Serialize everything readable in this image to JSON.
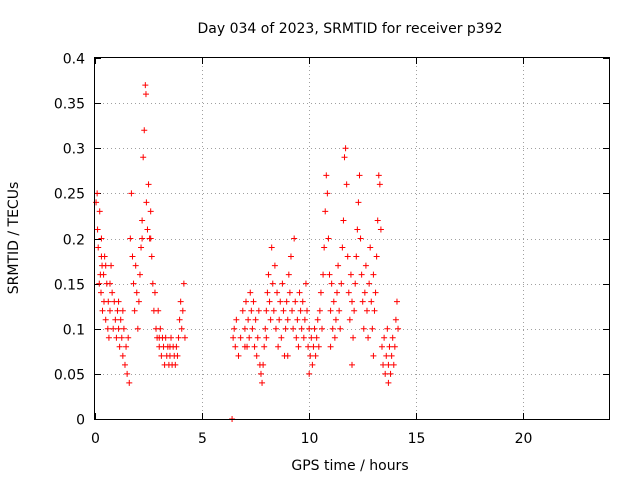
{
  "chart_data": {
    "type": "scatter",
    "title": "Day 034 of 2023, SRMTID for receiver p392",
    "xlabel": "GPS time / hours",
    "ylabel": "SRMTID / TECUs",
    "xlim": [
      0,
      24
    ],
    "ylim": [
      0,
      0.4
    ],
    "xticks": [
      0,
      5,
      10,
      15,
      20
    ],
    "xtick_labels": [
      "0",
      "5",
      "10",
      "15",
      "20"
    ],
    "yticks": [
      0,
      0.05,
      0.1,
      0.15,
      0.2,
      0.25,
      0.3,
      0.35,
      0.4
    ],
    "ytick_labels": [
      "0",
      "0.05",
      "0.1",
      "0.15",
      "0.2",
      "0.25",
      "0.3",
      "0.35",
      "0.4"
    ],
    "grid": true,
    "marker": "plus",
    "series_color": "#ff0000",
    "series": [
      {
        "name": "SRMTID",
        "points": [
          [
            0.05,
            0.24
          ],
          [
            0.1,
            0.25
          ],
          [
            0.12,
            0.21
          ],
          [
            0.15,
            0.19
          ],
          [
            0.2,
            0.15
          ],
          [
            0.22,
            0.23
          ],
          [
            0.25,
            0.16
          ],
          [
            0.28,
            0.14
          ],
          [
            0.3,
            0.2
          ],
          [
            0.33,
            0.17
          ],
          [
            0.35,
            0.12
          ],
          [
            0.4,
            0.16
          ],
          [
            0.42,
            0.13
          ],
          [
            0.45,
            0.18
          ],
          [
            0.5,
            0.11
          ],
          [
            0.55,
            0.15
          ],
          [
            0.6,
            0.1
          ],
          [
            0.62,
            0.13
          ],
          [
            0.65,
            0.09
          ],
          [
            0.7,
            0.12
          ],
          [
            0.75,
            0.17
          ],
          [
            0.8,
            0.14
          ],
          [
            0.85,
            0.1
          ],
          [
            0.9,
            0.13
          ],
          [
            0.95,
            0.11
          ],
          [
            1.0,
            0.09
          ],
          [
            1.05,
            0.12
          ],
          [
            1.1,
            0.1
          ],
          [
            1.15,
            0.08
          ],
          [
            1.2,
            0.11
          ],
          [
            1.25,
            0.09
          ],
          [
            1.3,
            0.07
          ],
          [
            1.35,
            0.1
          ],
          [
            1.4,
            0.06
          ],
          [
            1.45,
            0.08
          ],
          [
            1.5,
            0.05
          ],
          [
            1.55,
            0.09
          ],
          [
            1.6,
            0.04
          ],
          [
            1.65,
            0.2
          ],
          [
            1.7,
            0.25
          ],
          [
            1.75,
            0.18
          ],
          [
            1.8,
            0.15
          ],
          [
            1.85,
            0.12
          ],
          [
            1.9,
            0.17
          ],
          [
            1.95,
            0.14
          ],
          [
            2.0,
            0.1
          ],
          [
            2.05,
            0.13
          ],
          [
            2.1,
            0.16
          ],
          [
            2.15,
            0.19
          ],
          [
            2.2,
            0.22
          ],
          [
            2.25,
            0.29
          ],
          [
            2.3,
            0.32
          ],
          [
            2.35,
            0.37
          ],
          [
            2.38,
            0.36
          ],
          [
            2.4,
            0.24
          ],
          [
            2.45,
            0.21
          ],
          [
            2.5,
            0.26
          ],
          [
            2.55,
            0.2
          ],
          [
            2.6,
            0.23
          ],
          [
            2.65,
            0.18
          ],
          [
            2.7,
            0.15
          ],
          [
            2.75,
            0.12
          ],
          [
            2.8,
            0.14
          ],
          [
            2.85,
            0.1
          ],
          [
            2.9,
            0.09
          ],
          [
            2.95,
            0.12
          ],
          [
            3.0,
            0.08
          ],
          [
            3.05,
            0.1
          ],
          [
            3.1,
            0.07
          ],
          [
            3.15,
            0.09
          ],
          [
            3.2,
            0.08
          ],
          [
            3.25,
            0.06
          ],
          [
            3.3,
            0.09
          ],
          [
            3.35,
            0.07
          ],
          [
            3.4,
            0.08
          ],
          [
            3.45,
            0.06
          ],
          [
            3.5,
            0.07
          ],
          [
            3.55,
            0.09
          ],
          [
            3.6,
            0.06
          ],
          [
            3.65,
            0.08
          ],
          [
            3.7,
            0.07
          ],
          [
            3.75,
            0.06
          ],
          [
            3.8,
            0.08
          ],
          [
            3.85,
            0.07
          ],
          [
            3.9,
            0.09
          ],
          [
            3.95,
            0.11
          ],
          [
            4.0,
            0.13
          ],
          [
            4.05,
            0.1
          ],
          [
            4.1,
            0.12
          ],
          [
            4.15,
            0.15
          ],
          [
            4.2,
            0.09
          ],
          [
            0.3,
            0.18
          ],
          [
            0.5,
            0.17
          ],
          [
            0.7,
            0.15
          ],
          [
            1.1,
            0.13
          ],
          [
            1.3,
            0.12
          ],
          [
            2.2,
            0.2
          ],
          [
            2.6,
            0.2
          ],
          [
            3.0,
            0.09
          ],
          [
            3.5,
            0.08
          ],
          [
            6.4,
            0.0
          ],
          [
            6.45,
            0.09
          ],
          [
            6.5,
            0.1
          ],
          [
            6.55,
            0.08
          ],
          [
            6.6,
            0.11
          ],
          [
            6.7,
            0.07
          ],
          [
            6.8,
            0.09
          ],
          [
            6.9,
            0.12
          ],
          [
            7.0,
            0.1
          ],
          [
            7.05,
            0.13
          ],
          [
            7.1,
            0.08
          ],
          [
            7.15,
            0.11
          ],
          [
            7.2,
            0.09
          ],
          [
            7.25,
            0.14
          ],
          [
            7.3,
            0.12
          ],
          [
            7.35,
            0.1
          ],
          [
            7.4,
            0.13
          ],
          [
            7.45,
            0.08
          ],
          [
            7.5,
            0.11
          ],
          [
            7.55,
            0.07
          ],
          [
            7.6,
            0.09
          ],
          [
            7.65,
            0.12
          ],
          [
            7.7,
            0.06
          ],
          [
            7.75,
            0.05
          ],
          [
            7.8,
            0.04
          ],
          [
            7.85,
            0.06
          ],
          [
            7.9,
            0.08
          ],
          [
            7.95,
            0.1
          ],
          [
            8.0,
            0.12
          ],
          [
            8.05,
            0.14
          ],
          [
            8.1,
            0.16
          ],
          [
            8.15,
            0.13
          ],
          [
            8.2,
            0.11
          ],
          [
            8.25,
            0.19
          ],
          [
            8.3,
            0.15
          ],
          [
            8.35,
            0.12
          ],
          [
            8.4,
            0.17
          ],
          [
            8.45,
            0.1
          ],
          [
            8.5,
            0.14
          ],
          [
            8.55,
            0.08
          ],
          [
            8.6,
            0.11
          ],
          [
            8.65,
            0.13
          ],
          [
            8.7,
            0.09
          ],
          [
            8.75,
            0.15
          ],
          [
            8.8,
            0.12
          ],
          [
            8.85,
            0.07
          ],
          [
            8.9,
            0.1
          ],
          [
            8.95,
            0.13
          ],
          [
            9.0,
            0.11
          ],
          [
            9.05,
            0.16
          ],
          [
            9.1,
            0.14
          ],
          [
            9.15,
            0.18
          ],
          [
            9.2,
            0.12
          ],
          [
            9.25,
            0.1
          ],
          [
            9.3,
            0.2
          ],
          [
            9.35,
            0.13
          ],
          [
            9.4,
            0.09
          ],
          [
            9.45,
            0.11
          ],
          [
            9.5,
            0.08
          ],
          [
            9.55,
            0.14
          ],
          [
            9.6,
            0.12
          ],
          [
            9.65,
            0.1
          ],
          [
            9.7,
            0.13
          ],
          [
            9.75,
            0.09
          ],
          [
            9.8,
            0.11
          ],
          [
            9.85,
            0.15
          ],
          [
            9.9,
            0.12
          ],
          [
            9.95,
            0.08
          ],
          [
            10.0,
            0.1
          ],
          [
            10.05,
            0.07
          ],
          [
            10.1,
            0.09
          ],
          [
            10.15,
            0.06
          ],
          [
            10.2,
            0.08
          ],
          [
            10.25,
            0.1
          ],
          [
            10.3,
            0.07
          ],
          [
            10.35,
            0.09
          ],
          [
            10.4,
            0.11
          ],
          [
            10.45,
            0.08
          ],
          [
            10.5,
            0.12
          ],
          [
            10.55,
            0.14
          ],
          [
            10.6,
            0.1
          ],
          [
            10.65,
            0.16
          ],
          [
            10.7,
            0.19
          ],
          [
            10.75,
            0.23
          ],
          [
            10.8,
            0.27
          ],
          [
            10.85,
            0.25
          ],
          [
            10.9,
            0.2
          ],
          [
            10.95,
            0.16
          ],
          [
            11.0,
            0.12
          ],
          [
            11.05,
            0.15
          ],
          [
            11.1,
            0.1
          ],
          [
            11.15,
            0.13
          ],
          [
            11.2,
            0.09
          ],
          [
            11.25,
            0.11
          ],
          [
            11.3,
            0.14
          ],
          [
            11.35,
            0.17
          ],
          [
            11.4,
            0.12
          ],
          [
            11.45,
            0.1
          ],
          [
            11.5,
            0.15
          ],
          [
            11.55,
            0.19
          ],
          [
            11.6,
            0.22
          ],
          [
            11.65,
            0.29
          ],
          [
            11.7,
            0.3
          ],
          [
            11.75,
            0.26
          ],
          [
            11.8,
            0.18
          ],
          [
            11.85,
            0.14
          ],
          [
            11.9,
            0.11
          ],
          [
            11.95,
            0.16
          ],
          [
            12.0,
            0.13
          ],
          [
            12.05,
            0.09
          ],
          [
            12.1,
            0.12
          ],
          [
            12.15,
            0.15
          ],
          [
            12.2,
            0.18
          ],
          [
            12.25,
            0.21
          ],
          [
            12.3,
            0.24
          ],
          [
            12.35,
            0.27
          ],
          [
            12.4,
            0.2
          ],
          [
            12.45,
            0.16
          ],
          [
            12.5,
            0.13
          ],
          [
            12.55,
            0.1
          ],
          [
            12.6,
            0.14
          ],
          [
            12.65,
            0.17
          ],
          [
            12.7,
            0.12
          ],
          [
            12.75,
            0.09
          ],
          [
            12.8,
            0.15
          ],
          [
            12.85,
            0.19
          ],
          [
            12.9,
            0.13
          ],
          [
            12.95,
            0.1
          ],
          [
            13.0,
            0.16
          ],
          [
            13.05,
            0.12
          ],
          [
            13.1,
            0.14
          ],
          [
            13.15,
            0.18
          ],
          [
            13.2,
            0.22
          ],
          [
            13.25,
            0.27
          ],
          [
            13.3,
            0.26
          ],
          [
            13.35,
            0.21
          ],
          [
            13.4,
            0.08
          ],
          [
            13.45,
            0.06
          ],
          [
            13.5,
            0.09
          ],
          [
            13.55,
            0.05
          ],
          [
            13.6,
            0.07
          ],
          [
            13.65,
            0.1
          ],
          [
            13.7,
            0.06
          ],
          [
            13.75,
            0.08
          ],
          [
            13.8,
            0.05
          ],
          [
            13.85,
            0.07
          ],
          [
            13.9,
            0.09
          ],
          [
            13.95,
            0.06
          ],
          [
            14.0,
            0.08
          ],
          [
            14.05,
            0.11
          ],
          [
            14.1,
            0.13
          ],
          [
            14.15,
            0.1
          ],
          [
            7.0,
            0.08
          ],
          [
            8.0,
            0.09
          ],
          [
            9.0,
            0.07
          ],
          [
            10.0,
            0.05
          ],
          [
            11.0,
            0.08
          ],
          [
            12.0,
            0.06
          ],
          [
            13.0,
            0.07
          ],
          [
            13.7,
            0.04
          ]
        ]
      }
    ]
  }
}
